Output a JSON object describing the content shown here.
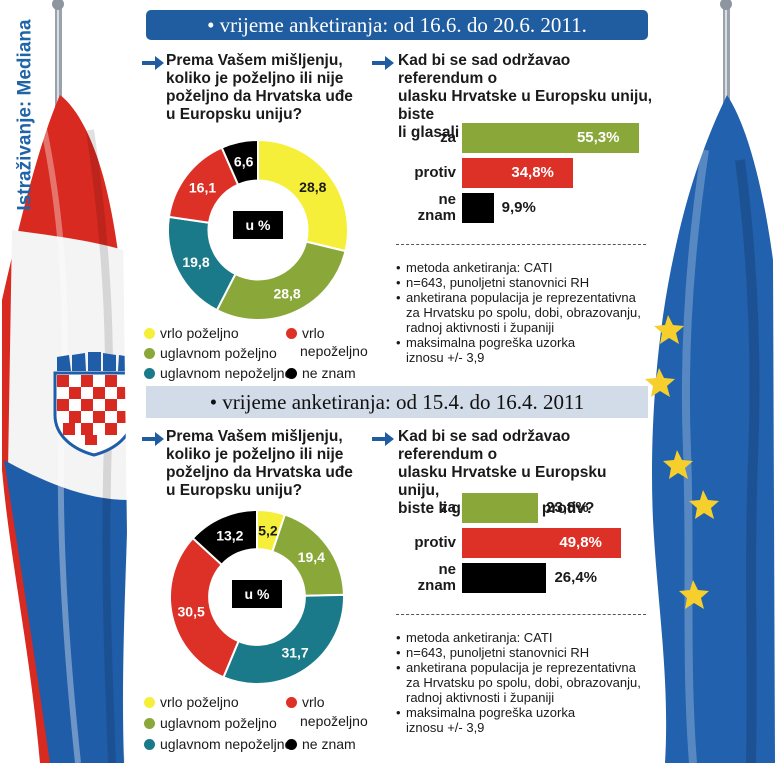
{
  "source_label": "Istraživanje: Mediana",
  "colors": {
    "banner": "#1f5da0",
    "yellow": "#f6ef39",
    "green": "#8aa83a",
    "teal": "#1b7a8a",
    "red": "#dd3127",
    "black": "#000000"
  },
  "surveys": [
    {
      "period": "• vrijeme anketiranja: od 16.6. do 20.6. 2011.",
      "q1": [
        "Prema Vašem mišljenju,",
        "koliko je poželjno ili nije",
        "poželjno da Hrvatska uđe",
        "u Europsku uniju?"
      ],
      "q2": [
        "Kad bi se sad održavao referendum o",
        "ulasku Hrvatske u Europsku uniju, biste",
        "li glasali za ili protiv?"
      ],
      "center": "u %",
      "notes": [
        "metoda anketiranja: CATI",
        "n=643, punoljetni stanovnici RH",
        "anketirana populacija je reprezentativna",
        "za Hrvatsku po spolu, dobi, obrazovanju,",
        "radnoj aktivnosti i županiji",
        "maksimalna pogreška uzorka",
        "iznosu +/- 3,9"
      ]
    },
    {
      "period": "• vrijeme anketiranja: od 15.4. do 16.4. 2011",
      "q1": [
        "Prema Vašem mišljenju,",
        "koliko je poželjno ili nije",
        "poželjno da Hrvatska uđe",
        "u Europsku uniju?"
      ],
      "q2": [
        "Kad bi se sad održavao referendum o",
        "ulasku Hrvatske u Europsku uniju,",
        "biste li glasali za ili protiv?"
      ],
      "center": "u %",
      "notes": [
        "metoda anketiranja: CATI",
        "n=643, punoljetni stanovnici RH",
        "anketirana populacija je reprezentativna",
        "za Hrvatsku po spolu, dobi, obrazovanju,",
        "radnoj aktivnosti i županiji",
        "maksimalna pogreška uzorka",
        "iznosu +/- 3,9"
      ]
    }
  ],
  "legend": {
    "vrlo_pozeljno": "vrlo poželjno",
    "uglavnom_pozeljno": "uglavnom poželjno",
    "uglavnom_nepozeljno": "uglavnom nepoželjno",
    "vrlo_nepozeljno_1": "vrlo",
    "vrlo_nepozeljno_2": "nepoželjno",
    "ne_znam": "ne znam"
  },
  "chart_data": [
    {
      "type": "pie",
      "title": "Prema Vašem mišljenju, koliko je poželjno ili nije poželjno da Hrvatska uđe u Europsku uniju? (u %) 16.6.–20.6.2011.",
      "slices": [
        {
          "name": "vrlo poželjno",
          "value": 28.8,
          "label": "28,8",
          "color": "#f6ef39"
        },
        {
          "name": "uglavnom poželjno",
          "value": 28.8,
          "label": "28,8",
          "color": "#8aa83a"
        },
        {
          "name": "uglavnom nepoželjno",
          "value": 19.8,
          "label": "19,8",
          "color": "#1b7a8a"
        },
        {
          "name": "vrlo nepoželjno",
          "value": 16.1,
          "label": "16,1",
          "color": "#dd3127"
        },
        {
          "name": "ne znam",
          "value": 6.6,
          "label": "6,6",
          "color": "#000000"
        }
      ]
    },
    {
      "type": "bar",
      "title": "Kad bi se sad održavao referendum o ulasku Hrvatske u Europsku uniju, biste li glasali za ili protiv? 16.6.–20.6.2011.",
      "categories": [
        "za",
        "protiv",
        "ne znam"
      ],
      "values": [
        55.3,
        34.8,
        9.9
      ],
      "labels": [
        "55,3%",
        "34,8%",
        "9,9%"
      ],
      "colors": [
        "#8aa83a",
        "#dd3127",
        "#000000"
      ]
    },
    {
      "type": "pie",
      "title": "Prema Vašem mišljenju, koliko je poželjno ili nije poželjno da Hrvatska uđe u Europsku uniju? (u %) 15.4.–16.4.2011.",
      "slices": [
        {
          "name": "vrlo poželjno",
          "value": 5.2,
          "label": "5,2",
          "color": "#f6ef39"
        },
        {
          "name": "uglavnom poželjno",
          "value": 19.4,
          "label": "19,4",
          "color": "#8aa83a"
        },
        {
          "name": "uglavnom nepoželjno",
          "value": 31.7,
          "label": "31,7",
          "color": "#1b7a8a"
        },
        {
          "name": "vrlo nepoželjno",
          "value": 30.5,
          "label": "30,5",
          "color": "#dd3127"
        },
        {
          "name": "ne znam",
          "value": 13.2,
          "label": "13,2",
          "color": "#000000"
        }
      ]
    },
    {
      "type": "bar",
      "title": "Kad bi se sad održavao referendum o ulasku Hrvatske u Europsku uniju, biste li glasali za ili protiv? 15.4.–16.4.2011.",
      "categories": [
        "za",
        "protiv",
        "ne znam"
      ],
      "values": [
        23.8,
        49.8,
        26.4
      ],
      "labels": [
        "23,8%",
        "49,8%",
        "26,4%"
      ],
      "colors": [
        "#8aa83a",
        "#dd3127",
        "#000000"
      ]
    }
  ]
}
